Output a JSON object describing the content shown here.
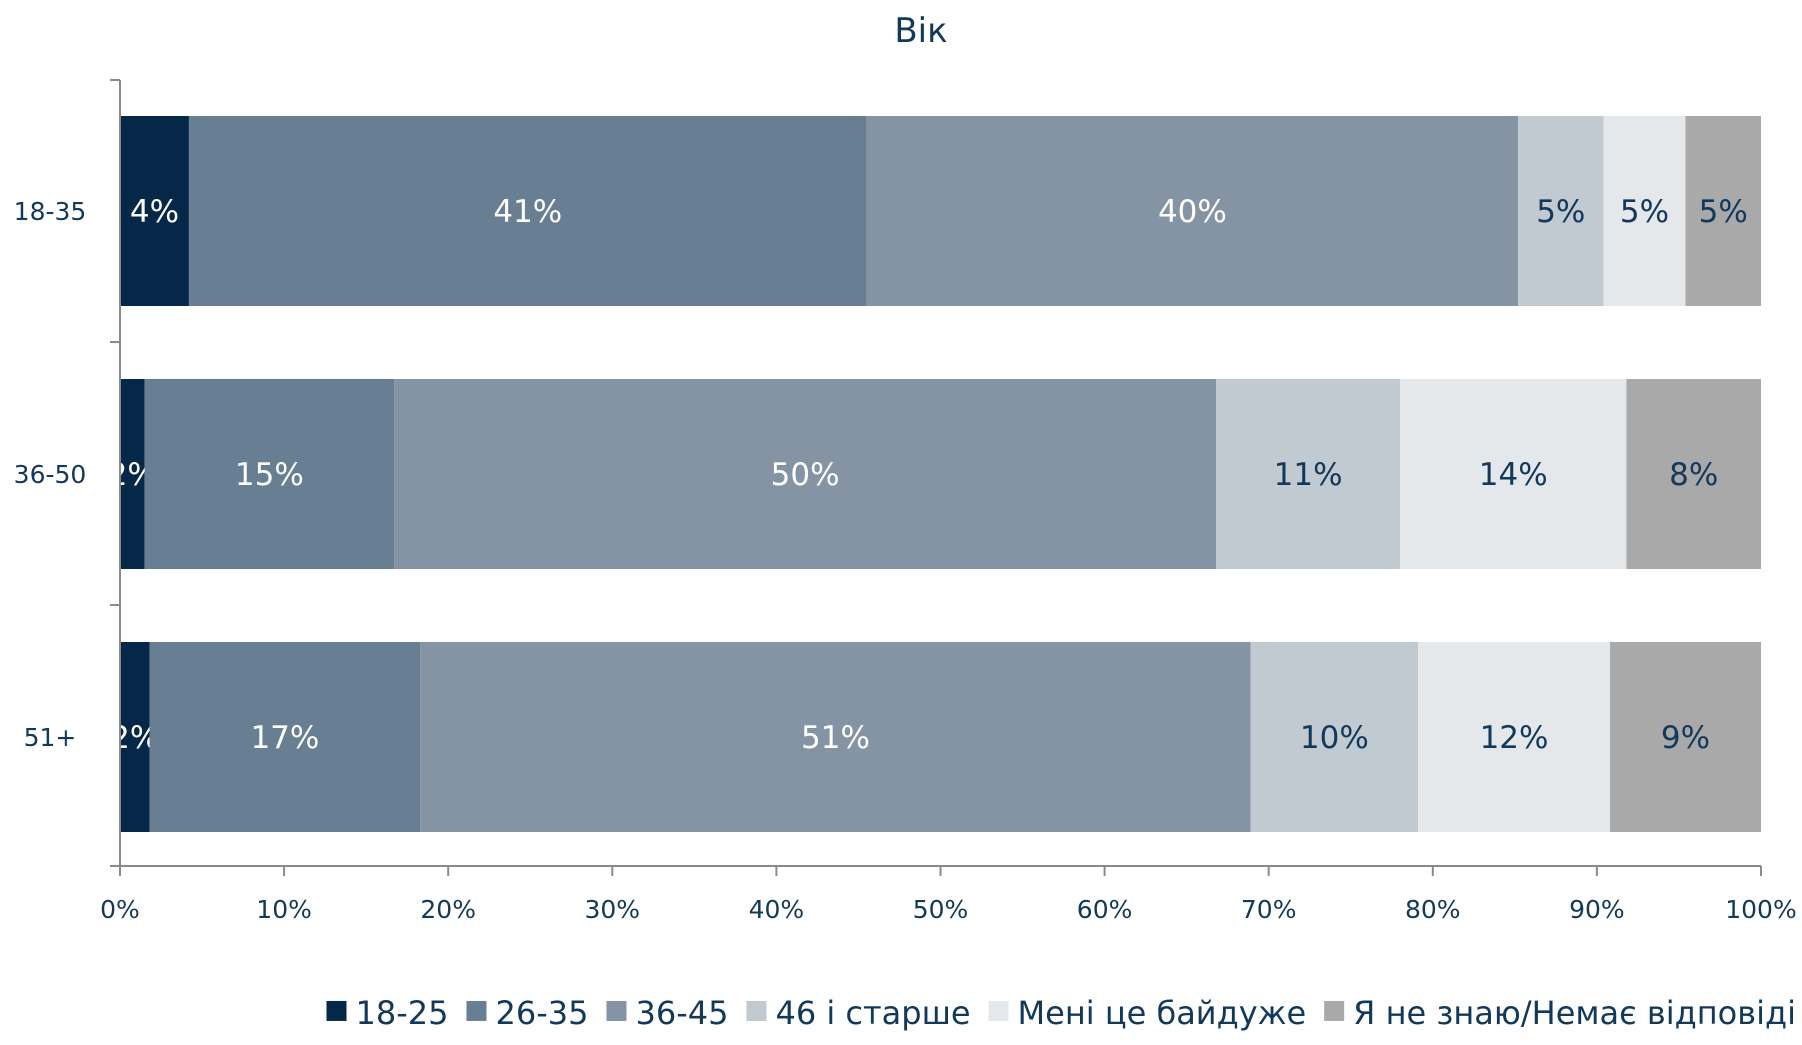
{
  "chart_data": {
    "type": "bar",
    "orientation": "horizontal",
    "stacked": true,
    "title": "Вік",
    "categories": [
      "18-35",
      "36-50",
      "51+"
    ],
    "series": [
      {
        "name": "18-25",
        "color": "#062848",
        "label_color": "#ffffff",
        "values": [
          4.2,
          1.5,
          1.8
        ],
        "labels": [
          "4%",
          "2%",
          "2%"
        ]
      },
      {
        "name": "26-35",
        "color": "#687e92",
        "label_color": "#ffffff",
        "values": [
          41.3,
          15.2,
          16.5
        ],
        "labels": [
          "41%",
          "15%",
          "17%"
        ]
      },
      {
        "name": "36-45",
        "color": "#8494a5",
        "label_color": "#ffffff",
        "values": [
          39.7,
          50.1,
          50.6
        ],
        "labels": [
          "40%",
          "50%",
          "51%"
        ]
      },
      {
        "name": "46 і старше",
        "color": "#c1c9d1",
        "label_color": "#12385a",
        "values": [
          5.2,
          11.2,
          10.2
        ],
        "labels": [
          "5%",
          "11%",
          "10%"
        ]
      },
      {
        "name": "Мені це байдуже",
        "color": "#e5e8eb",
        "label_color": "#12385a",
        "values": [
          5.0,
          13.8,
          11.7
        ],
        "labels": [
          "5%",
          "14%",
          "12%"
        ]
      },
      {
        "name": "Я не знаю/Немає відповіді",
        "color": "#a9a9a9",
        "label_color": "#12385a",
        "values": [
          4.6,
          8.2,
          9.2
        ],
        "labels": [
          "5%",
          "8%",
          "9%"
        ]
      }
    ],
    "xlim": [
      0,
      100
    ],
    "x_ticks": [
      "0%",
      "10%",
      "20%",
      "30%",
      "40%",
      "50%",
      "60%",
      "70%",
      "80%",
      "90%",
      "100%"
    ],
    "xlabel": "",
    "ylabel": "",
    "grid": false,
    "legend_position": "bottom"
  }
}
